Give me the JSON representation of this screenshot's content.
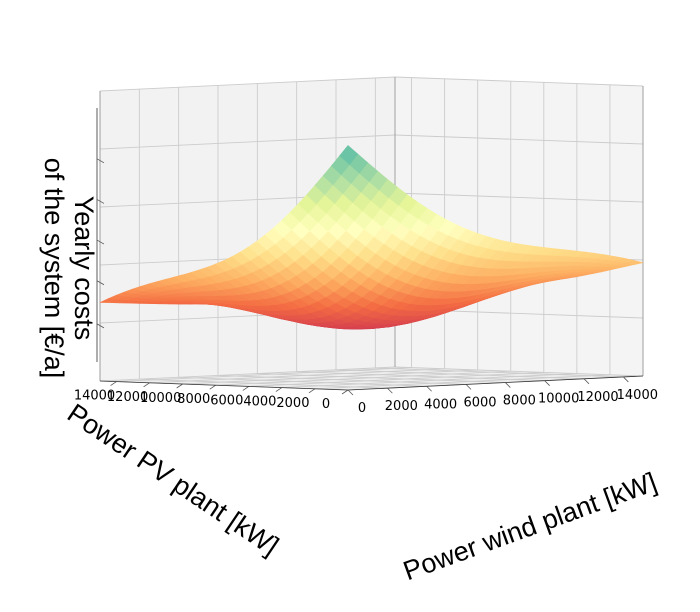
{
  "chart_data": {
    "type": "surface3d",
    "x_axis": {
      "label": "Power PV plant [kW]",
      "ticks": [
        0,
        2000,
        4000,
        6000,
        8000,
        10000,
        12000,
        14000
      ],
      "range": [
        0,
        15000
      ]
    },
    "y_axis": {
      "label": "Power wind plant [kW]",
      "ticks": [
        0,
        2000,
        4000,
        6000,
        8000,
        10000,
        12000,
        14000
      ],
      "range": [
        0,
        15000
      ]
    },
    "z_axis": {
      "label_lines": [
        "Yearly costs",
        "of the system [€/a]"
      ],
      "tick_labels_shown": false,
      "relative_levels": [
        0,
        0.2,
        0.4,
        0.6,
        0.8,
        1.0
      ]
    },
    "surface": {
      "grid_pv_kw": [
        0,
        1000,
        2000,
        3000,
        4000,
        5000,
        6000,
        7000,
        8000,
        9000,
        10000,
        11000,
        12000,
        13000,
        14000,
        15000
      ],
      "grid_wind_kw": [
        0,
        1000,
        2000,
        3000,
        4000,
        5000,
        6000,
        7000,
        8000,
        9000,
        10000,
        11000,
        12000,
        13000,
        14000,
        15000
      ],
      "relative_cost_at_corners": {
        "pv0_wind0": 1.0,
        "pv15000_wind0": 0.31,
        "pv0_wind15000": 0.44,
        "pv15000_wind15000": 0.38
      },
      "relative_cost_minimum": {
        "pv_kw": 7500,
        "wind_kw": 7000,
        "value": 0.08
      }
    },
    "colormap": "Spectral",
    "grid": true
  }
}
